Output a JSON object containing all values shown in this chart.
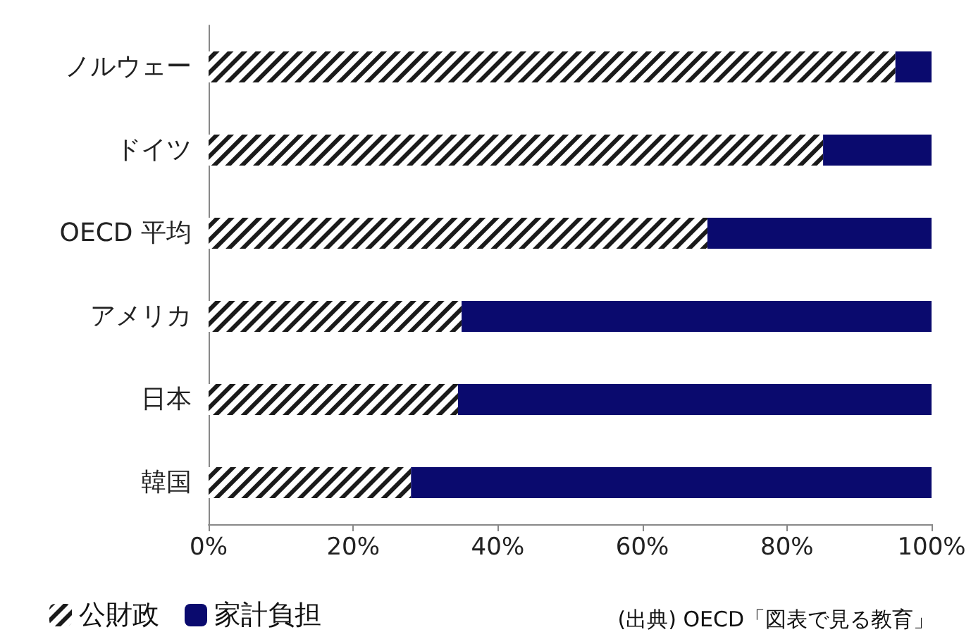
{
  "chart_data": {
    "type": "bar",
    "orientation": "horizontal",
    "stacked": true,
    "categories": [
      "ノルウェー",
      "ドイツ",
      "OECD 平均",
      "アメリカ",
      "日本",
      "韓国"
    ],
    "series": [
      {
        "name": "公財政",
        "color": "#1a1a1a",
        "values": [
          95,
          85,
          69,
          35,
          34.5,
          28
        ]
      },
      {
        "name": "家計負担",
        "color": "#0a0a6e",
        "values": [
          5,
          15,
          31,
          65,
          65.5,
          72
        ]
      }
    ],
    "xlim": [
      0,
      100
    ],
    "xticks": [
      {
        "value": 0,
        "label": "0%"
      },
      {
        "value": 20,
        "label": "20%"
      },
      {
        "value": 40,
        "label": "40%"
      },
      {
        "value": 60,
        "label": "60%"
      },
      {
        "value": 80,
        "label": "80%"
      },
      {
        "value": 100,
        "label": "100%"
      }
    ],
    "annotations": [
      "(出典) OECD「図表で見る教育」"
    ],
    "legend": "bottom",
    "grid": false
  }
}
